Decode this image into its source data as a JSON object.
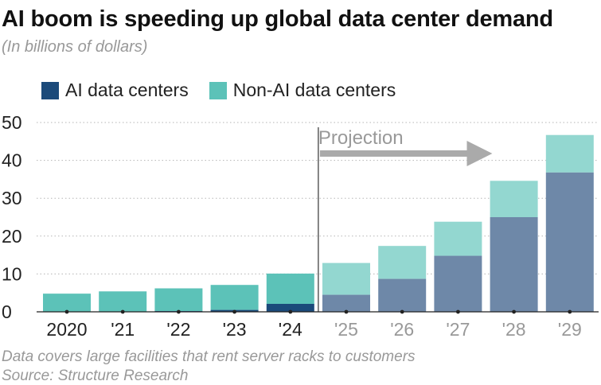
{
  "header": {
    "title": "AI boom is speeding up global data center demand",
    "subtitle": "(In billions of dollars)"
  },
  "legend": {
    "ai_label": "AI data centers",
    "non_ai_label": "Non-AI data centers"
  },
  "footer": {
    "note": "Data covers large facilities that rent server racks to customers",
    "source": "Source: Structure Research"
  },
  "colors": {
    "ai_actual": "#1b4a7a",
    "non_ai_actual": "#5cc2b8",
    "ai_projection": "#6e88a8",
    "non_ai_projection": "#93d7d0",
    "grid": "#b5b5b5",
    "arrow": "#aaaaaa"
  },
  "chart_data": {
    "type": "bar",
    "stacked": true,
    "categories": [
      "2020",
      "'21",
      "'22",
      "'23",
      "'24",
      "'25",
      "'26",
      "'27",
      "'28",
      "'29"
    ],
    "series": [
      {
        "name": "AI data centers",
        "values": [
          0.1,
          0.1,
          0.2,
          0.5,
          2.1,
          4.5,
          8.7,
          14.8,
          25.0,
          36.8
        ]
      },
      {
        "name": "Non-AI data centers",
        "values": [
          4.7,
          5.3,
          6.0,
          6.6,
          8.0,
          8.4,
          8.7,
          9.0,
          9.6,
          9.9
        ]
      }
    ],
    "projection_start_index": 5,
    "annotation": "Projection",
    "ylim": [
      0,
      50
    ],
    "yticks": [
      0,
      10,
      20,
      30,
      40,
      50
    ],
    "grid": true,
    "title": "AI boom is speeding up global data center demand",
    "ylabel": "(In billions of dollars)",
    "xlabel": ""
  }
}
